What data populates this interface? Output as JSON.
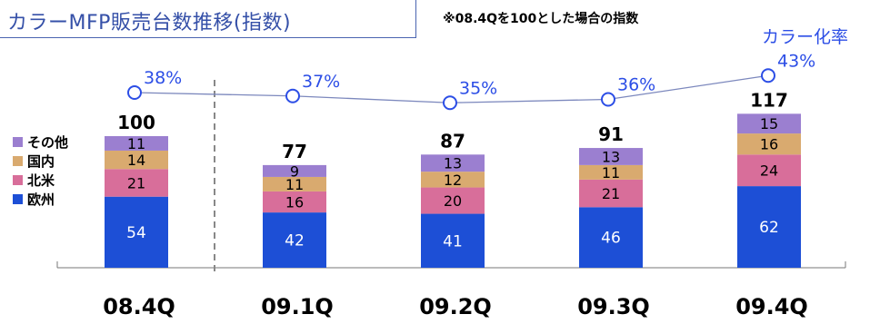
{
  "title": "カラーMFP販売台数推移(指数)",
  "note": "※08.4Qを100とした場合の指数",
  "rate_label": "カラー化率",
  "legend": [
    {
      "label": "その他",
      "color": "#9b7fd0"
    },
    {
      "label": "国内",
      "color": "#d9aa6f"
    },
    {
      "label": "北米",
      "color": "#d86e9a"
    },
    {
      "label": "欧州",
      "color": "#1d4fd6"
    }
  ],
  "chart_data": {
    "type": "bar",
    "stacked": true,
    "categories": [
      "08.4Q",
      "09.1Q",
      "09.2Q",
      "09.3Q",
      "09.4Q"
    ],
    "series": [
      {
        "name": "欧州",
        "values": [
          54,
          42,
          41,
          46,
          62
        ],
        "color": "#1d4fd6"
      },
      {
        "name": "北米",
        "values": [
          21,
          16,
          20,
          21,
          24
        ],
        "color": "#d86e9a"
      },
      {
        "name": "国内",
        "values": [
          14,
          11,
          12,
          11,
          16
        ],
        "color": "#d9aa6f"
      },
      {
        "name": "その他",
        "values": [
          11,
          9,
          13,
          13,
          15
        ],
        "color": "#9b7fd0"
      }
    ],
    "totals": [
      "100",
      "77",
      "87",
      "91",
      "117"
    ],
    "rate_series": {
      "name": "カラー化率",
      "values": [
        38,
        37,
        35,
        36,
        43
      ],
      "labels": [
        "38%",
        "37%",
        "35%",
        "36%",
        "43%"
      ],
      "color": "#2c4ee6"
    },
    "divider_after": "08.4Q"
  }
}
